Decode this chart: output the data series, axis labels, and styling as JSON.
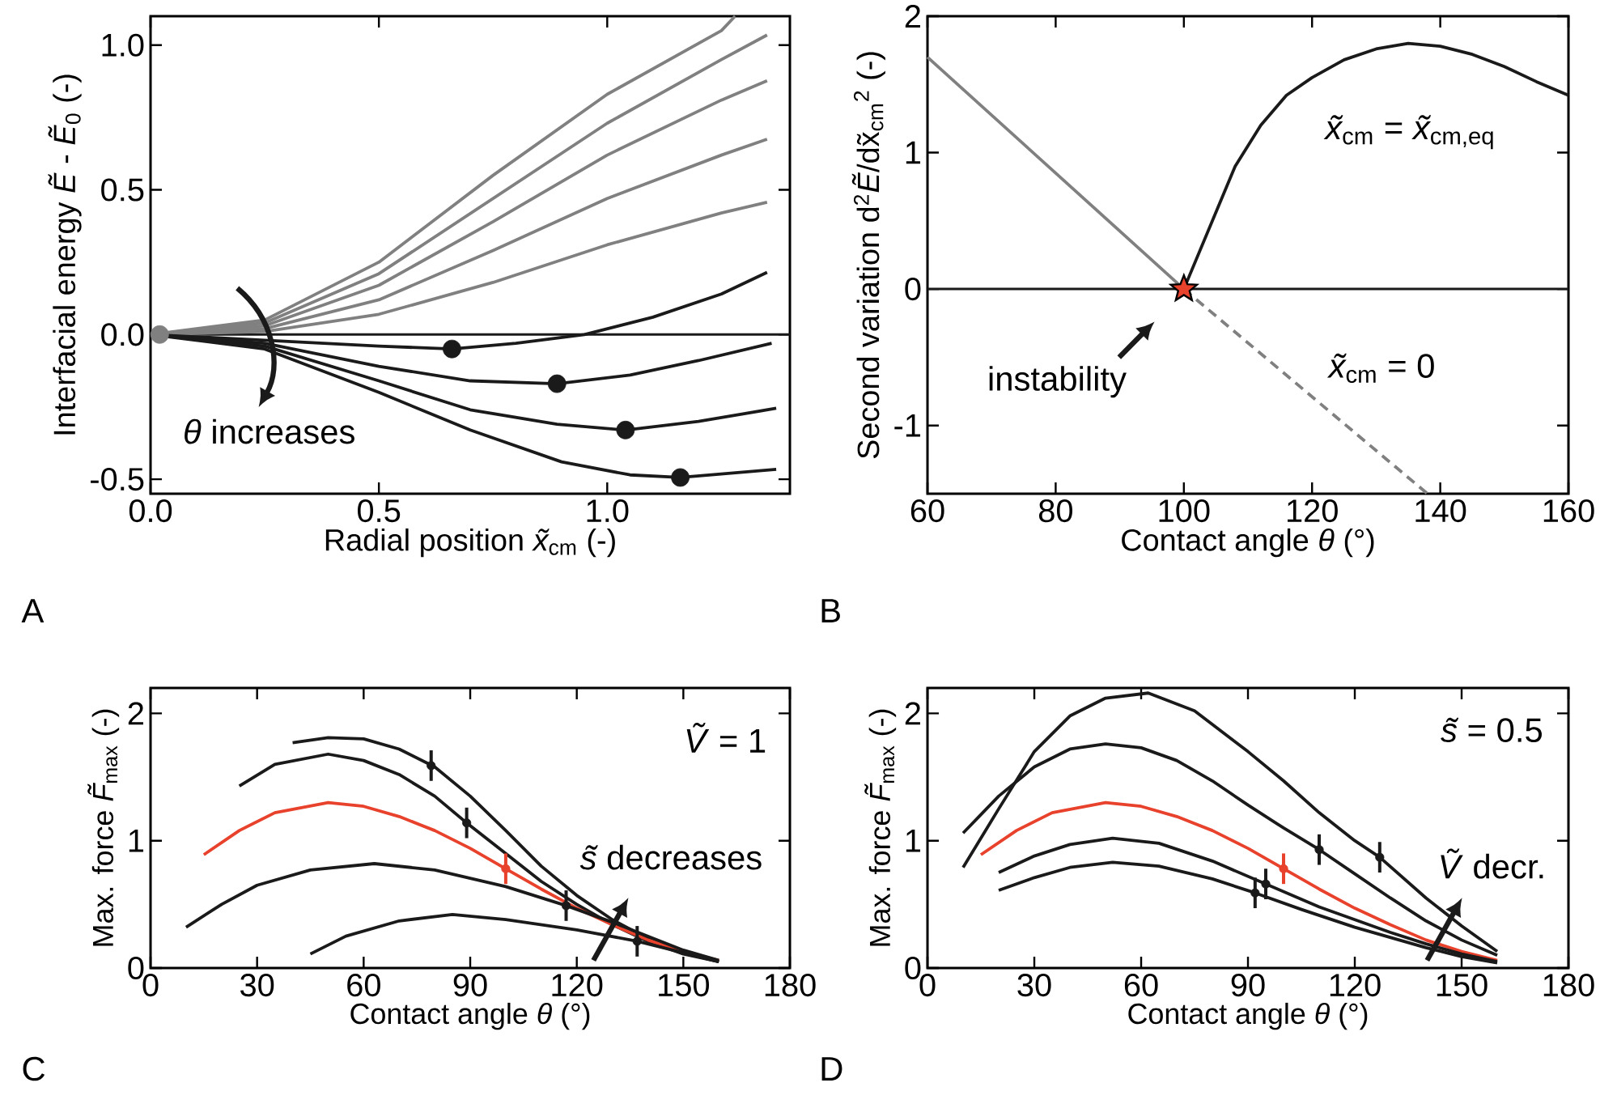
{
  "chart_data": [
    {
      "type": "line",
      "xlabel": "Radial position *x̃*$_{cm}$ (-)",
      "ylabel": "Interfacial energy *Ẽ* - *Ẽ*$_{0}$ (-)",
      "xlim": [
        0,
        1.4
      ],
      "ylim": [
        -0.55,
        1.1
      ],
      "xticks": [
        {
          "value": 0,
          "label": "0.0"
        },
        {
          "value": 0.5,
          "label": "0.5"
        },
        {
          "value": 1,
          "label": "1.0"
        }
      ],
      "yticks": [
        {
          "value": -0.5,
          "label": "-0.5"
        },
        {
          "value": 0,
          "label": "0.0"
        },
        {
          "value": 0.5,
          "label": "0.5"
        },
        {
          "value": 1,
          "label": "1.0"
        }
      ],
      "series": [
        {
          "color": "#808080",
          "x": [
            0,
            0.25,
            0.5,
            0.75,
            1.0,
            1.25,
            1.28
          ],
          "values": [
            0,
            0.05,
            0.25,
            0.55,
            0.83,
            1.05,
            1.1
          ]
        },
        {
          "color": "#808080",
          "x": [
            0,
            0.25,
            0.5,
            0.75,
            1.0,
            1.25,
            1.35
          ],
          "values": [
            0,
            0.04,
            0.21,
            0.47,
            0.73,
            0.95,
            1.035
          ]
        },
        {
          "color": "#808080",
          "x": [
            0,
            0.25,
            0.5,
            0.75,
            1.0,
            1.25,
            1.35
          ],
          "values": [
            0,
            0.03,
            0.17,
            0.39,
            0.62,
            0.81,
            0.877
          ]
        },
        {
          "color": "#808080",
          "x": [
            0,
            0.25,
            0.5,
            0.75,
            1.0,
            1.25,
            1.35
          ],
          "values": [
            0,
            0.02,
            0.12,
            0.29,
            0.47,
            0.62,
            0.675
          ]
        },
        {
          "color": "#808080",
          "x": [
            0,
            0.25,
            0.5,
            0.75,
            1.0,
            1.25,
            1.35
          ],
          "values": [
            0,
            0.01,
            0.07,
            0.18,
            0.31,
            0.42,
            0.457
          ]
        },
        {
          "color": "#1a1a1a",
          "x": [
            0,
            0.25,
            0.5,
            0.66,
            0.8,
            0.95,
            1.1,
            1.25,
            1.35
          ],
          "values": [
            0,
            -0.02,
            -0.04,
            -0.05,
            -0.03,
            0.0,
            0.06,
            0.14,
            0.215
          ]
        },
        {
          "color": "#1a1a1a",
          "x": [
            0,
            0.25,
            0.5,
            0.7,
            0.89,
            1.05,
            1.2,
            1.36
          ],
          "values": [
            0,
            -0.03,
            -0.11,
            -0.16,
            -0.17,
            -0.14,
            -0.09,
            -0.03
          ]
        },
        {
          "color": "#1a1a1a",
          "x": [
            0,
            0.25,
            0.5,
            0.7,
            0.89,
            1.04,
            1.2,
            1.37
          ],
          "values": [
            0,
            -0.04,
            -0.16,
            -0.26,
            -0.31,
            -0.33,
            -0.3,
            -0.255
          ]
        },
        {
          "color": "#1a1a1a",
          "x": [
            0,
            0.25,
            0.5,
            0.7,
            0.9,
            1.05,
            1.16,
            1.37
          ],
          "values": [
            0,
            -0.05,
            -0.2,
            -0.33,
            -0.44,
            -0.485,
            -0.494,
            -0.466
          ]
        },
        {
          "type": "scatter",
          "marker": "circle",
          "color": "#1a1a1a",
          "x": [
            0.66,
            0.89,
            1.04,
            1.16
          ],
          "values": [
            -0.05,
            -0.17,
            -0.33,
            -0.494
          ]
        },
        {
          "type": "scatter",
          "marker": "circle",
          "color": "#808080",
          "x": [
            0.02
          ],
          "values": [
            0
          ]
        }
      ],
      "ref_lines": [
        {
          "axis": "y",
          "value": 0,
          "color": "#1a1a1a"
        }
      ],
      "annotations": [
        "*θ* increases",
        "A"
      ]
    },
    {
      "type": "line",
      "xlabel": "Contact angle *θ* (°)",
      "ylabel": "Second variation d$^{2}$*Ẽ*/dx̃$_{cm}$$^{2}$ (-)",
      "xlim": [
        60,
        160
      ],
      "ylim": [
        -1.5,
        2
      ],
      "xticks": [
        60,
        80,
        100,
        120,
        140,
        160
      ],
      "yticks": [
        -1,
        0,
        1,
        2
      ],
      "series": [
        {
          "color": "#808080",
          "x": [
            60,
            100
          ],
          "values": [
            1.7,
            0
          ]
        },
        {
          "color": "#808080",
          "line_style": "dashed",
          "x": [
            100,
            138
          ],
          "values": [
            0,
            -1.5
          ]
        },
        {
          "color": "#1a1a1a",
          "x": [
            100,
            104,
            108,
            112,
            116,
            120,
            125,
            130,
            135,
            140,
            145,
            150,
            155,
            160
          ],
          "values": [
            0,
            0.45,
            0.9,
            1.2,
            1.42,
            1.55,
            1.68,
            1.76,
            1.8,
            1.78,
            1.72,
            1.63,
            1.52,
            1.42
          ]
        },
        {
          "type": "scatter",
          "marker": "star",
          "color": "#e8412c",
          "x": [
            100
          ],
          "values": [
            0
          ]
        }
      ],
      "ref_lines": [
        {
          "axis": "y",
          "value": 0,
          "color": "#1a1a1a"
        }
      ],
      "annotations": [
        "*x̃*$_{cm}$ = *x̃*$_{cm,eq}$",
        "*x̃*$_{cm}$ = 0",
        "instability",
        "B"
      ]
    },
    {
      "type": "line",
      "xlabel": "Contact angle *θ* (°)",
      "ylabel": "Max. force *F̃*$_{max}$ (-)",
      "xlim": [
        0,
        180
      ],
      "ylim": [
        0,
        2.2
      ],
      "xticks": [
        0,
        30,
        60,
        90,
        120,
        150,
        180
      ],
      "yticks": [
        0,
        1,
        2
      ],
      "series": [
        {
          "color": "#1a1a1a",
          "x": [
            40,
            50,
            60,
            70,
            80,
            90,
            100,
            110,
            120,
            130,
            140,
            150,
            160
          ],
          "values": [
            1.77,
            1.81,
            1.8,
            1.72,
            1.58,
            1.35,
            1.08,
            0.8,
            0.57,
            0.38,
            0.23,
            0.12,
            0.05
          ]
        },
        {
          "color": "#1a1a1a",
          "x": [
            25,
            35,
            50,
            60,
            70,
            80,
            89,
            100,
            110,
            120,
            130,
            140,
            150,
            160
          ],
          "values": [
            1.43,
            1.6,
            1.68,
            1.63,
            1.52,
            1.35,
            1.14,
            0.9,
            0.68,
            0.5,
            0.34,
            0.21,
            0.11,
            0.05
          ]
        },
        {
          "color": "#e8412c",
          "x": [
            15,
            25,
            35,
            50,
            60,
            70,
            80,
            90,
            100,
            110,
            120,
            130,
            140,
            150,
            160
          ],
          "values": [
            0.89,
            1.08,
            1.22,
            1.3,
            1.27,
            1.19,
            1.08,
            0.94,
            0.78,
            0.62,
            0.47,
            0.34,
            0.22,
            0.13,
            0.06
          ]
        },
        {
          "color": "#1a1a1a",
          "x": [
            10,
            20,
            30,
            45,
            63,
            80,
            100,
            117,
            130,
            140,
            150,
            160
          ],
          "values": [
            0.32,
            0.5,
            0.65,
            0.77,
            0.82,
            0.77,
            0.64,
            0.49,
            0.36,
            0.25,
            0.14,
            0.06
          ]
        },
        {
          "color": "#1a1a1a",
          "x": [
            45,
            55,
            70,
            85,
            100,
            120,
            137,
            150,
            160
          ],
          "values": [
            0.11,
            0.25,
            0.37,
            0.42,
            0.38,
            0.3,
            0.21,
            0.12,
            0.05
          ]
        },
        {
          "type": "scatter",
          "marker": "circle",
          "color": "#1a1a1a",
          "x": [
            79,
            89,
            117,
            137
          ],
          "values": [
            1.59,
            1.14,
            0.49,
            0.21
          ],
          "errors": [
            0.12,
            0.12,
            0.12,
            0.12
          ]
        },
        {
          "type": "scatter",
          "marker": "circle",
          "color": "#e8412c",
          "x": [
            100
          ],
          "values": [
            0.78
          ],
          "errors": [
            0.12
          ]
        }
      ],
      "annotations": [
        "*Ṽ* = 1",
        "*s̃* decreases",
        "C"
      ]
    },
    {
      "type": "line",
      "xlabel": "Contact angle *θ* (°)",
      "ylabel": "Max. force *F̃*$_{max}$ (-)",
      "xlim": [
        0,
        180
      ],
      "ylim": [
        0,
        2.2
      ],
      "xticks": [
        0,
        30,
        60,
        90,
        120,
        150,
        180
      ],
      "yticks": [
        0,
        1,
        2
      ],
      "series": [
        {
          "color": "#1a1a1a",
          "x": [
            10,
            20,
            30,
            40,
            50,
            62,
            75,
            90,
            100,
            110,
            120,
            127,
            140,
            150,
            160
          ],
          "values": [
            0.79,
            1.25,
            1.7,
            1.98,
            2.12,
            2.16,
            2.02,
            1.7,
            1.47,
            1.22,
            1.0,
            0.87,
            0.55,
            0.33,
            0.13
          ]
        },
        {
          "color": "#1a1a1a",
          "x": [
            10,
            20,
            30,
            40,
            50,
            60,
            70,
            80,
            90,
            100,
            110,
            120,
            130,
            140,
            150,
            160
          ],
          "values": [
            1.06,
            1.35,
            1.58,
            1.72,
            1.76,
            1.73,
            1.63,
            1.47,
            1.28,
            1.1,
            0.93,
            0.74,
            0.55,
            0.37,
            0.22,
            0.1
          ]
        },
        {
          "color": "#e8412c",
          "x": [
            15,
            25,
            35,
            50,
            60,
            70,
            80,
            90,
            100,
            110,
            120,
            130,
            140,
            150,
            160
          ],
          "values": [
            0.89,
            1.08,
            1.22,
            1.3,
            1.27,
            1.19,
            1.08,
            0.94,
            0.78,
            0.62,
            0.47,
            0.34,
            0.22,
            0.13,
            0.06
          ]
        },
        {
          "color": "#1a1a1a",
          "x": [
            20,
            30,
            40,
            52,
            65,
            80,
            95,
            110,
            120,
            130,
            140,
            150,
            160
          ],
          "values": [
            0.75,
            0.88,
            0.97,
            1.02,
            0.98,
            0.84,
            0.66,
            0.48,
            0.38,
            0.28,
            0.19,
            0.11,
            0.05
          ]
        },
        {
          "color": "#1a1a1a",
          "x": [
            20,
            30,
            40,
            52,
            65,
            80,
            92,
            105,
            120,
            130,
            140,
            150,
            160
          ],
          "values": [
            0.61,
            0.71,
            0.79,
            0.83,
            0.8,
            0.7,
            0.59,
            0.46,
            0.32,
            0.24,
            0.16,
            0.09,
            0.04
          ]
        },
        {
          "type": "scatter",
          "marker": "circle",
          "color": "#1a1a1a",
          "x": [
            127,
            110,
            95,
            92
          ],
          "values": [
            0.87,
            0.93,
            0.66,
            0.59
          ],
          "errors": [
            0.12,
            0.12,
            0.12,
            0.12
          ]
        },
        {
          "type": "scatter",
          "marker": "circle",
          "color": "#e8412c",
          "x": [
            100
          ],
          "values": [
            0.78
          ],
          "errors": [
            0.12
          ]
        }
      ],
      "annotations": [
        "*s̃* = 0.5",
        "*Ṽ* decr.",
        "D"
      ]
    }
  ]
}
